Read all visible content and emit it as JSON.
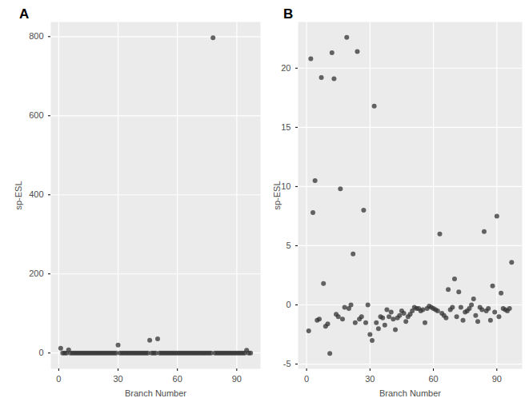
{
  "chart_data": [
    {
      "type": "scatter",
      "title": "A",
      "x_label": "Branch Number",
      "y_label": "sp-ESL",
      "color": "#333333",
      "grid": true,
      "x": [
        1,
        2,
        3,
        4,
        5,
        6,
        7,
        8,
        9,
        10,
        11,
        12,
        13,
        14,
        15,
        16,
        17,
        18,
        19,
        20,
        21,
        22,
        23,
        24,
        25,
        26,
        27,
        28,
        29,
        30,
        31,
        32,
        33,
        34,
        35,
        36,
        37,
        38,
        39,
        40,
        41,
        42,
        43,
        44,
        45,
        46,
        47,
        48,
        49,
        50,
        51,
        52,
        53,
        54,
        55,
        56,
        57,
        58,
        59,
        60,
        61,
        62,
        63,
        64,
        65,
        66,
        67,
        68,
        69,
        70,
        71,
        72,
        73,
        74,
        75,
        76,
        77,
        78,
        79,
        80,
        81,
        82,
        83,
        84,
        85,
        86,
        87,
        88,
        89,
        90,
        91,
        92,
        93,
        94,
        95,
        96,
        97
      ],
      "values": [
        12,
        0,
        0,
        0,
        8,
        0,
        0,
        0,
        0,
        0,
        0,
        0,
        0,
        0,
        0,
        0,
        0,
        0,
        0,
        0,
        0,
        0,
        0,
        0,
        0,
        0,
        0,
        0,
        0,
        20,
        0,
        0,
        0,
        0,
        0,
        0,
        0,
        0,
        0,
        0,
        0,
        0,
        0,
        0,
        0,
        32,
        0,
        0,
        0,
        36,
        0,
        0,
        0,
        0,
        0,
        0,
        0,
        0,
        0,
        0,
        0,
        0,
        0,
        0,
        0,
        0,
        0,
        0,
        0,
        0,
        0,
        0,
        0,
        0,
        0,
        0,
        0,
        797,
        0,
        0,
        0,
        0,
        0,
        0,
        0,
        0,
        0,
        0,
        0,
        0,
        0,
        0,
        0,
        0,
        7,
        0,
        0
      ],
      "xlim": [
        -4,
        102
      ],
      "xticks": [
        0,
        30,
        60,
        90
      ],
      "ylim": [
        -40,
        837
      ],
      "yticks": [
        0,
        200,
        400,
        600,
        800
      ]
    },
    {
      "type": "scatter",
      "title": "B",
      "x_label": "Branch Number",
      "y_label": "sp-ESL",
      "color": "#333333",
      "grid": true,
      "x": [
        1,
        2,
        3,
        4,
        5,
        6,
        7,
        8,
        9,
        10,
        11,
        12,
        13,
        14,
        15,
        16,
        17,
        18,
        19,
        20,
        21,
        22,
        23,
        24,
        25,
        26,
        27,
        28,
        29,
        30,
        31,
        32,
        33,
        34,
        35,
        36,
        37,
        38,
        39,
        40,
        41,
        42,
        43,
        44,
        45,
        46,
        47,
        48,
        49,
        50,
        51,
        52,
        53,
        54,
        55,
        56,
        57,
        58,
        59,
        60,
        61,
        62,
        63,
        64,
        65,
        66,
        67,
        68,
        69,
        70,
        71,
        72,
        73,
        74,
        75,
        76,
        77,
        78,
        79,
        80,
        81,
        82,
        83,
        84,
        85,
        86,
        87,
        88,
        89,
        90,
        91,
        92,
        93,
        94,
        95,
        96,
        97
      ],
      "values": [
        -2.2,
        20.8,
        7.8,
        10.5,
        -1.3,
        -1.2,
        19.2,
        1.8,
        -1.8,
        -1.6,
        -4.1,
        21.3,
        19.1,
        -0.8,
        -1.0,
        9.8,
        -1.2,
        -0.2,
        22.6,
        -0.3,
        0.0,
        4.3,
        -1.5,
        21.4,
        -1.2,
        -1.0,
        8.0,
        -1.5,
        0.0,
        -2.5,
        -3.0,
        16.8,
        -1.5,
        -2.0,
        -1.0,
        -1.1,
        -1.7,
        -0.4,
        -1.0,
        -0.6,
        -1.2,
        -2.1,
        -1.1,
        -0.9,
        -0.5,
        -0.7,
        -1.4,
        -1.0,
        -0.8,
        -0.5,
        -0.2,
        -0.3,
        -0.3,
        -0.5,
        -0.4,
        -1.5,
        -0.3,
        -0.1,
        -0.2,
        -0.3,
        -0.4,
        -0.5,
        6.0,
        -0.7,
        -0.9,
        -1.1,
        1.3,
        -0.4,
        -0.2,
        2.2,
        -1.0,
        1.1,
        -0.2,
        -1.3,
        -0.6,
        -0.5,
        -0.3,
        0.0,
        0.5,
        -0.9,
        -1.4,
        -0.2,
        -0.4,
        6.2,
        -0.5,
        -0.3,
        -1.3,
        1.6,
        -0.6,
        7.5,
        -1.0,
        1.0,
        -0.3,
        -0.4,
        -0.5,
        -0.3,
        3.6
      ],
      "xlim": [
        -4,
        102
      ],
      "xticks": [
        0,
        30,
        60,
        90
      ],
      "ylim": [
        -5.4,
        23.9
      ],
      "yticks": [
        -5,
        0,
        5,
        10,
        15,
        20
      ]
    }
  ]
}
